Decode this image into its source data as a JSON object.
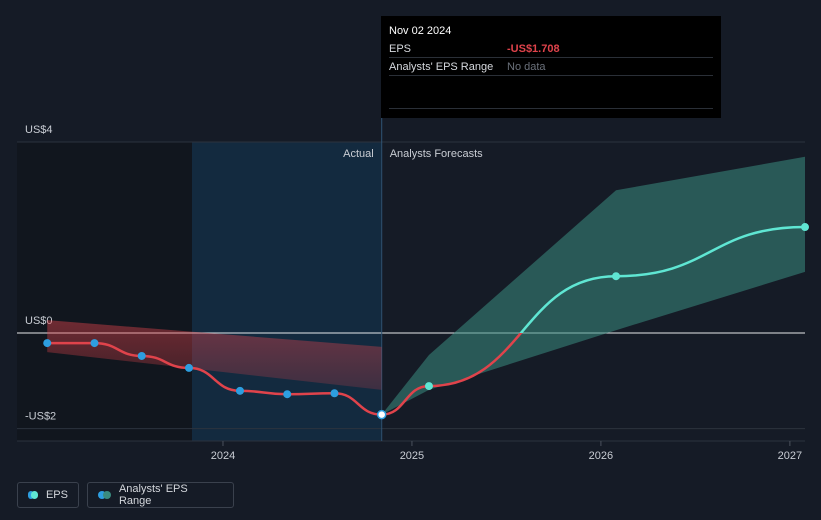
{
  "chart_data": {
    "type": "line",
    "actual_label": "Actual",
    "forecast_label": "Analysts Forecasts",
    "xlim": [
      2022.91,
      2027.08
    ],
    "xticks": [
      2024,
      2025,
      2026,
      2027
    ],
    "ylim": [
      -2.26,
      4
    ],
    "yticks": [
      {
        "value": -2,
        "label": "-US$2"
      },
      {
        "value": 0,
        "label": "US$0"
      },
      {
        "value": 4,
        "label": "US$4"
      }
    ],
    "series": [
      {
        "name": "EPS",
        "color": "#5fe6d3",
        "negative_color": "#e0434b",
        "actual_color": "#2d9ee0",
        "x": [
          2023.07,
          2023.32,
          2023.57,
          2023.82,
          2024.09,
          2024.34,
          2024.59,
          2024.84,
          2025.09,
          2026.08,
          2027.08
        ],
        "values": [
          -0.21,
          -0.21,
          -0.48,
          -0.73,
          -1.21,
          -1.28,
          -1.26,
          -1.708,
          -1.11,
          1.19,
          2.22
        ]
      },
      {
        "name": "Analysts' EPS Range",
        "color": "#3a8c80",
        "pieces": [
          {
            "color": "#e0434b",
            "x": [
              2023.07,
              2024.84
            ],
            "low": [
              -0.4,
              -1.19
            ],
            "high": [
              0.27,
              -0.29
            ]
          },
          {
            "color": "#3a8c80",
            "x": [
              2024.84,
              2025.09,
              2026.08,
              2027.08
            ],
            "low": [
              -1.708,
              -1.19,
              0.06,
              1.28
            ],
            "high": [
              -1.708,
              -0.46,
              2.99,
              3.69
            ]
          }
        ]
      }
    ],
    "tooltip": {
      "date": "Nov 02 2024",
      "rows": [
        {
          "label": "EPS",
          "value": "-US$1.708",
          "color": "#e0434b"
        },
        {
          "label": "Analysts' EPS Range",
          "value": "No data",
          "color": "#6b717b"
        }
      ]
    }
  }
}
